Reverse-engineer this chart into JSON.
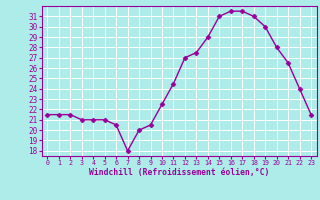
{
  "hours": [
    0,
    1,
    2,
    3,
    4,
    5,
    6,
    7,
    8,
    9,
    10,
    11,
    12,
    13,
    14,
    15,
    16,
    17,
    18,
    19,
    20,
    21,
    22,
    23
  ],
  "values": [
    21.5,
    21.5,
    21.5,
    21.0,
    21.0,
    21.0,
    20.5,
    18.0,
    20.0,
    20.5,
    22.5,
    24.5,
    27.0,
    27.5,
    29.0,
    31.0,
    31.5,
    31.5,
    31.0,
    30.0,
    28.0,
    26.5,
    24.0,
    21.5
  ],
  "line_color": "#990099",
  "marker": "D",
  "marker_size": 2.5,
  "bg_color": "#aeecea",
  "grid_color": "#ffffff",
  "xlabel": "Windchill (Refroidissement éolien,°C)",
  "xlabel_color": "#990099",
  "tick_color": "#990099",
  "xlim": [
    -0.5,
    23.5
  ],
  "ylim": [
    17.5,
    32.0
  ],
  "yticks": [
    18,
    19,
    20,
    21,
    22,
    23,
    24,
    25,
    26,
    27,
    28,
    29,
    30,
    31
  ],
  "xticks": [
    0,
    1,
    2,
    3,
    4,
    5,
    6,
    7,
    8,
    9,
    10,
    11,
    12,
    13,
    14,
    15,
    16,
    17,
    18,
    19,
    20,
    21,
    22,
    23
  ]
}
